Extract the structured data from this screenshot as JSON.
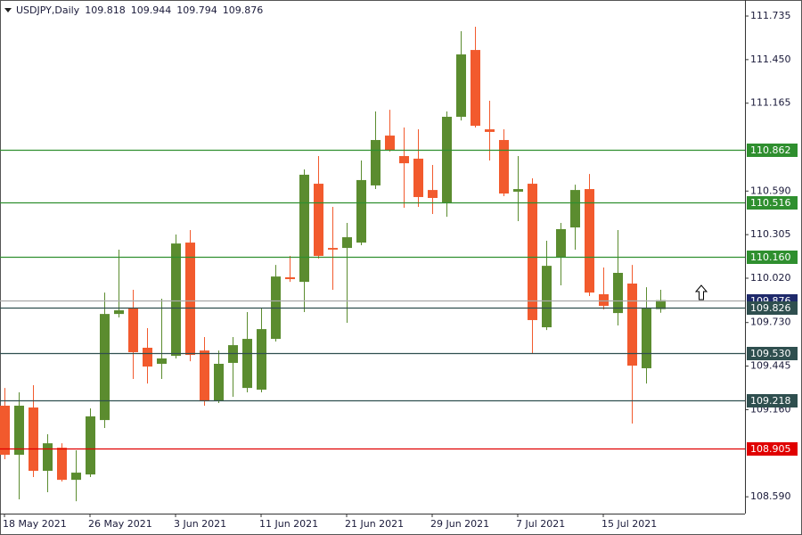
{
  "chart_data": {
    "type": "candlestick",
    "title": "USDJPY,Daily",
    "categories": [
      "18 May 2021",
      null,
      null,
      null,
      null,
      null,
      "26 May 2021",
      null,
      null,
      null,
      null,
      null,
      "3 Jun 2021",
      null,
      null,
      null,
      null,
      null,
      "11 Jun 2021",
      null,
      null,
      null,
      null,
      null,
      "21 Jun 2021",
      null,
      null,
      null,
      null,
      null,
      "29 Jun 2021",
      null,
      null,
      null,
      null,
      null,
      "7 Jul 2021",
      null,
      null,
      null,
      null,
      null,
      "15 Jul 2021",
      null,
      null,
      null,
      null
    ],
    "open": [
      109.186,
      108.865,
      109.174,
      108.76,
      108.911,
      108.701,
      108.736,
      109.092,
      109.786,
      109.827,
      109.565,
      109.46,
      109.512,
      110.253,
      109.547,
      109.215,
      109.466,
      109.302,
      109.291,
      109.623,
      110.026,
      109.996,
      110.638,
      110.218,
      110.218,
      110.253,
      110.627,
      110.953,
      110.819,
      110.802,
      110.597,
      110.516,
      111.076,
      111.513,
      110.994,
      110.924,
      110.586,
      110.638,
      109.699,
      110.16,
      110.352,
      110.603,
      109.915,
      109.792,
      109.985,
      109.431,
      109.818
    ],
    "high": [
      109.302,
      109.273,
      109.32,
      108.999,
      108.94,
      108.894,
      109.168,
      109.926,
      110.207,
      109.944,
      109.693,
      109.886,
      110.306,
      110.335,
      109.635,
      109.547,
      109.635,
      109.798,
      109.827,
      110.107,
      110.166,
      110.732,
      110.819,
      110.487,
      110.382,
      110.79,
      111.111,
      111.122,
      111.006,
      110.994,
      110.761,
      111.111,
      111.636,
      111.665,
      111.181,
      110.994,
      110.819,
      110.673,
      110.265,
      110.382,
      110.632,
      110.702,
      110.09,
      110.335,
      110.107,
      109.961,
      109.944
    ],
    "low": [
      108.836,
      108.573,
      108.719,
      108.62,
      108.69,
      108.561,
      108.719,
      109.04,
      109.763,
      109.361,
      109.331,
      109.361,
      109.495,
      109.477,
      109.186,
      109.203,
      109.244,
      109.273,
      109.273,
      109.606,
      109.996,
      109.798,
      110.148,
      109.944,
      109.728,
      110.236,
      110.603,
      110.848,
      110.481,
      110.487,
      110.44,
      110.422,
      111.052,
      111.006,
      110.79,
      110.557,
      110.393,
      109.53,
      109.681,
      109.973,
      110.207,
      109.903,
      109.816,
      109.711,
      109.069,
      109.331,
      109.794
    ],
    "close": [
      108.865,
      109.186,
      108.76,
      108.94,
      108.701,
      108.748,
      109.116,
      109.786,
      109.81,
      109.536,
      109.442,
      109.495,
      110.247,
      109.518,
      109.215,
      109.46,
      109.582,
      109.623,
      109.687,
      110.031,
      110.014,
      110.697,
      110.166,
      110.207,
      110.288,
      110.662,
      110.924,
      110.86,
      110.772,
      110.551,
      110.545,
      111.076,
      111.484,
      111.017,
      110.977,
      110.574,
      110.603,
      109.746,
      110.101,
      110.341,
      110.597,
      109.926,
      109.839,
      110.055,
      109.448,
      109.827,
      109.876
    ],
    "up_color": "#5b8c2f",
    "down_color": "#f25a2d",
    "ylim": [
      108.48,
      111.84
    ],
    "yticks": [
      111.735,
      {
        "value": 111.45,
        "label": "111.450"
      },
      111.165,
      {
        "value": 110.59,
        "label": "110.590"
      },
      110.305,
      {
        "value": 110.02,
        "label": "110.020"
      },
      {
        "value": 109.73,
        "label": "109.730"
      },
      109.445,
      {
        "value": 109.16,
        "label": "109.160"
      },
      {
        "value": 108.59,
        "label": "108.590"
      }
    ],
    "levels": [
      {
        "value": 110.862,
        "color": "#2f8f2f"
      },
      {
        "value": 110.516,
        "color": "#2f8f2f"
      },
      {
        "value": 110.16,
        "label": "110.160",
        "color": "#2f8f2f"
      },
      {
        "value": 109.876,
        "color": "#1f2a6b",
        "line_color": "#a8a8a8"
      },
      {
        "value": 109.826,
        "color": "#2f4f4f"
      },
      {
        "value": 109.53,
        "label": "109.530",
        "color": "#2f4f4f"
      },
      {
        "value": 109.218,
        "color": "#2f4f4f"
      },
      {
        "value": 108.905,
        "color": "#e00000"
      }
    ]
  }
}
